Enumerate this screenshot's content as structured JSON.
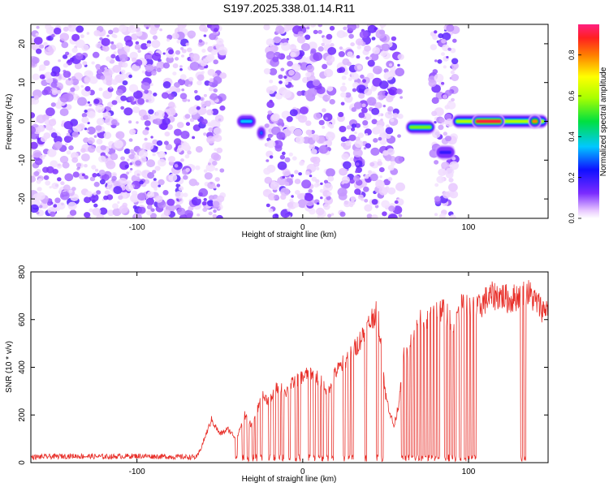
{
  "title": "S197.2025.338.01.14.R11",
  "colors": {
    "snr_line": "#e8302a",
    "axis": "#000000"
  },
  "chart_data": [
    {
      "type": "heatmap",
      "xlabel": "Height of straight line (km)",
      "ylabel": "Frequency (Hz)",
      "xlim": [
        -164,
        148
      ],
      "ylim": [
        -25,
        25
      ],
      "xticks": [
        -100,
        0,
        100
      ],
      "xtick_labels": [
        "-100",
        "0",
        "100"
      ],
      "yticks": [
        -20,
        -10,
        0,
        10,
        20
      ],
      "ytick_labels": [
        "-20",
        "-10",
        "0",
        "10",
        "20"
      ],
      "colorbar": {
        "label": "Normalized spectral amplitude",
        "range": [
          0,
          0.95
        ],
        "ticks": [
          0.0,
          0.2,
          0.4,
          0.6,
          0.8
        ],
        "tick_labels": [
          "0.0",
          "0.2",
          "0.4",
          "0.6",
          "0.8"
        ]
      },
      "noise_regions_km": [
        [
          -164,
          -48
        ],
        [
          -22,
          18
        ],
        [
          22,
          60
        ],
        [
          78,
          92
        ]
      ],
      "gap_regions_km": [
        [
          -48,
          -40
        ],
        [
          18,
          22
        ],
        [
          60,
          64
        ]
      ],
      "features": [
        {
          "x_start": -40,
          "x_end": -28,
          "freq": 0,
          "amplitude": 0.35
        },
        {
          "x_start": -28,
          "x_end": -22,
          "freq": -3,
          "amplitude": 0.3
        },
        {
          "x_start": 62,
          "x_end": 80,
          "freq": -1.5,
          "amplitude": 0.55
        },
        {
          "x_start": 80,
          "x_end": 92,
          "freq": -8,
          "amplitude": 0.2
        },
        {
          "x_start": 90,
          "x_end": 148,
          "freq": 0,
          "amplitude": 0.6
        },
        {
          "x_start": 102,
          "x_end": 122,
          "freq": 0,
          "amplitude": 0.9
        },
        {
          "x_start": 136,
          "x_end": 144,
          "freq": 0,
          "amplitude": 0.8
        }
      ]
    },
    {
      "type": "line",
      "xlabel": "Height of straight line (km)",
      "ylabel": "SNR (10 * v/v)",
      "xlim": [
        -164,
        148
      ],
      "ylim": [
        0,
        800
      ],
      "xticks": [
        -100,
        0,
        100
      ],
      "xtick_labels": [
        "-100",
        "0",
        "100"
      ],
      "yticks": [
        0,
        200,
        400,
        600,
        800
      ],
      "ytick_labels": [
        "0",
        "200",
        "400",
        "600",
        "800"
      ],
      "series": [
        {
          "name": "SNR",
          "baseline": {
            "x": [
              -164,
              -140,
              -120,
              -100,
              -80,
              -64,
              -62,
              -55,
              -50,
              -45,
              -40,
              -35,
              -30,
              -25,
              -20,
              -15,
              -10,
              -5,
              0,
              5,
              10,
              15,
              20,
              25,
              30,
              35,
              40,
              45,
              50,
              55,
              58,
              60,
              62,
              65,
              70,
              75,
              80,
              85,
              90,
              95,
              100,
              105,
              110,
              115,
              120,
              125,
              130,
              135,
              140,
              145,
              148
            ],
            "y": [
              20,
              25,
              22,
              25,
              22,
              20,
              50,
              180,
              120,
              140,
              100,
              200,
              150,
              280,
              260,
              320,
              300,
              340,
              360,
              380,
              350,
              300,
              380,
              420,
              460,
              520,
              580,
              650,
              280,
              150,
              250,
              440,
              450,
              520,
              600,
              600,
              640,
              640,
              580,
              650,
              650,
              640,
              680,
              700,
              700,
              680,
              700,
              720,
              680,
              640,
              660
            ]
          },
          "dropouts_km": [
            -40,
            -36,
            -33,
            -30,
            -28,
            -25,
            -20,
            -17,
            -14,
            -12,
            -8,
            -4,
            -2,
            4,
            7,
            10,
            12,
            15,
            18,
            25,
            28,
            30,
            38,
            45,
            48,
            60,
            62,
            64,
            66,
            68,
            70,
            72,
            74,
            76,
            78,
            80,
            82,
            86,
            88,
            90,
            92,
            95,
            98,
            100,
            102,
            104,
            132,
            134
          ]
        }
      ]
    }
  ]
}
